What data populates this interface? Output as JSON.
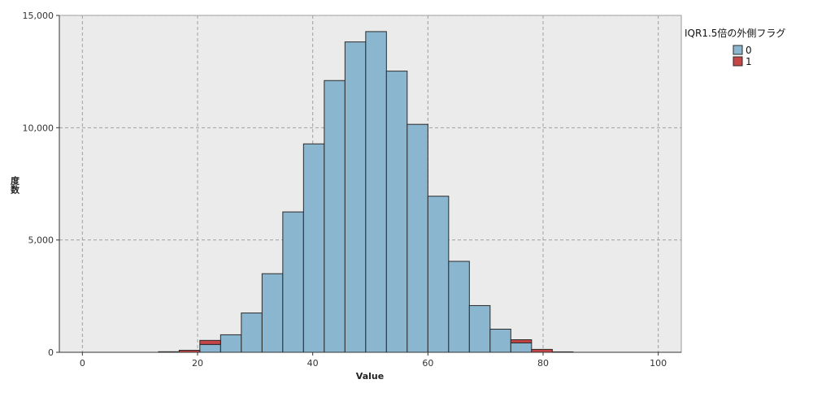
{
  "chart_data": {
    "type": "bar",
    "subtype": "stacked-histogram",
    "xlabel": "Value",
    "ylabel": "度数",
    "xlim": [
      -4,
      104
    ],
    "ylim": [
      0,
      15000
    ],
    "x_ticks": [
      0,
      20,
      40,
      60,
      80,
      100
    ],
    "x_tick_labels": [
      "0",
      "20",
      "40",
      "60",
      "80",
      "100"
    ],
    "y_ticks": [
      0,
      5000,
      10000,
      15000
    ],
    "y_tick_labels": [
      "0",
      "5,000",
      "10,000",
      "15,000"
    ],
    "grid": true,
    "legend": {
      "title": "IQR1.5倍の外側フラグ",
      "placement": "right",
      "entries": [
        {
          "label": "0",
          "color": "#8ab6d0"
        },
        {
          "label": "1",
          "color": "#c64545"
        }
      ]
    },
    "bin_width": 3.6,
    "bin_starts": [
      13.2,
      16.8,
      20.4,
      24.0,
      27.6,
      31.2,
      34.8,
      38.4,
      42.0,
      45.6,
      49.2,
      52.8,
      56.4,
      60.0,
      63.6,
      67.2,
      70.8,
      74.4,
      78.0,
      81.6
    ],
    "series": [
      {
        "name": "0",
        "color": "#8ab6d0",
        "values": [
          0,
          0,
          350,
          780,
          1750,
          3500,
          6250,
          9280,
          12100,
          13820,
          14280,
          12520,
          10150,
          6950,
          4050,
          2080,
          1030,
          420,
          0,
          0
        ]
      },
      {
        "name": "1",
        "color": "#c64545",
        "values": [
          25,
          90,
          180,
          0,
          0,
          0,
          0,
          0,
          0,
          0,
          0,
          0,
          0,
          0,
          0,
          0,
          0,
          140,
          130,
          20
        ]
      }
    ],
    "colors": {
      "background": "#ebebeb",
      "grid": "#a0a0a0",
      "bar_stroke": "#2a2a2a"
    }
  }
}
